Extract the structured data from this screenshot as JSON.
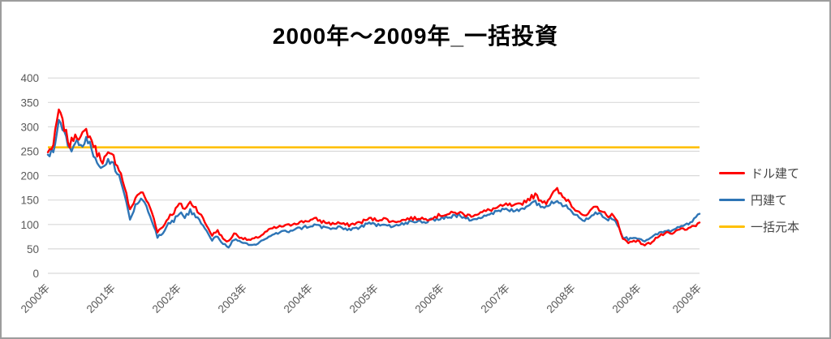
{
  "title": "2000年～2009年_一括投資",
  "legend": [
    {
      "label": "ドル建て",
      "color": "#ff0000"
    },
    {
      "label": "円建て",
      "color": "#2e75b6"
    },
    {
      "label": "一括元本",
      "color": "#ffc000"
    }
  ],
  "axis_colors": {
    "tick_label": "#595959",
    "gridline": "#d9d9d9"
  },
  "chart_data": {
    "type": "line",
    "title": "2000年～2009年_一括投資",
    "xlabel": "",
    "ylabel": "",
    "ylim": [
      0,
      400
    ],
    "y_ticks": [
      0,
      50,
      100,
      150,
      200,
      250,
      300,
      350,
      400
    ],
    "grid": "horizontal",
    "legend_position": "right",
    "x_start": "2000-01",
    "x_interval": "month",
    "x_tick_labels": [
      "2000年",
      "2001年",
      "2002年",
      "2003年",
      "2004年",
      "2005年",
      "2006年",
      "2007年",
      "2008年",
      "2009年",
      "2009年"
    ],
    "x_tick_month_indices": [
      0,
      12,
      24,
      36,
      48,
      60,
      72,
      84,
      96,
      108,
      119
    ],
    "series": [
      {
        "name": "ドル建て",
        "color": "#ff0000",
        "values": [
          248,
          262,
          335,
          298,
          262,
          286,
          278,
          292,
          272,
          246,
          232,
          242,
          238,
          215,
          178,
          128,
          155,
          168,
          150,
          125,
          86,
          95,
          115,
          125,
          142,
          132,
          145,
          135,
          118,
          98,
          78,
          88,
          70,
          65,
          82,
          75,
          70,
          68,
          72,
          78,
          86,
          92,
          94,
          97,
          98,
          103,
          104,
          107,
          109,
          111,
          106,
          104,
          101,
          104,
          100,
          99,
          102,
          104,
          109,
          112,
          109,
          112,
          110,
          105,
          108,
          109,
          113,
          112,
          114,
          110,
          114,
          117,
          120,
          121,
          123,
          125,
          120,
          118,
          121,
          124,
          127,
          131,
          134,
          137,
          141,
          136,
          140,
          147,
          154,
          160,
          150,
          146,
          162,
          170,
          156,
          150,
          135,
          128,
          115,
          125,
          136,
          130,
          118,
          120,
          105,
          72,
          62,
          68,
          64,
          58,
          62,
          72,
          78,
          82,
          80,
          88,
          92,
          90,
          96,
          104
        ]
      },
      {
        "name": "円建て",
        "color": "#2e75b6",
        "values": [
          243,
          252,
          315,
          285,
          250,
          272,
          262,
          278,
          255,
          228,
          215,
          228,
          222,
          200,
          162,
          110,
          138,
          152,
          135,
          108,
          74,
          82,
          100,
          108,
          125,
          115,
          128,
          118,
          103,
          85,
          68,
          76,
          60,
          55,
          70,
          64,
          60,
          57,
          59,
          66,
          73,
          79,
          82,
          85,
          86,
          91,
          92,
          95,
          97,
          99,
          95,
          93,
          91,
          94,
          91,
          90,
          92,
          94,
          99,
          102,
          99,
          102,
          100,
          96,
          99,
          101,
          105,
          104,
          107,
          104,
          109,
          112,
          114,
          115,
          117,
          119,
          113,
          110,
          113,
          116,
          119,
          123,
          126,
          129,
          131,
          127,
          130,
          136,
          142,
          147,
          139,
          134,
          146,
          152,
          141,
          136,
          124,
          118,
          107,
          115,
          126,
          121,
          110,
          113,
          100,
          75,
          70,
          74,
          72,
          66,
          70,
          79,
          85,
          88,
          87,
          95,
          100,
          103,
          110,
          122
        ]
      },
      {
        "name": "一括元本",
        "color": "#ffc000",
        "constant": true,
        "value": 258
      }
    ]
  }
}
